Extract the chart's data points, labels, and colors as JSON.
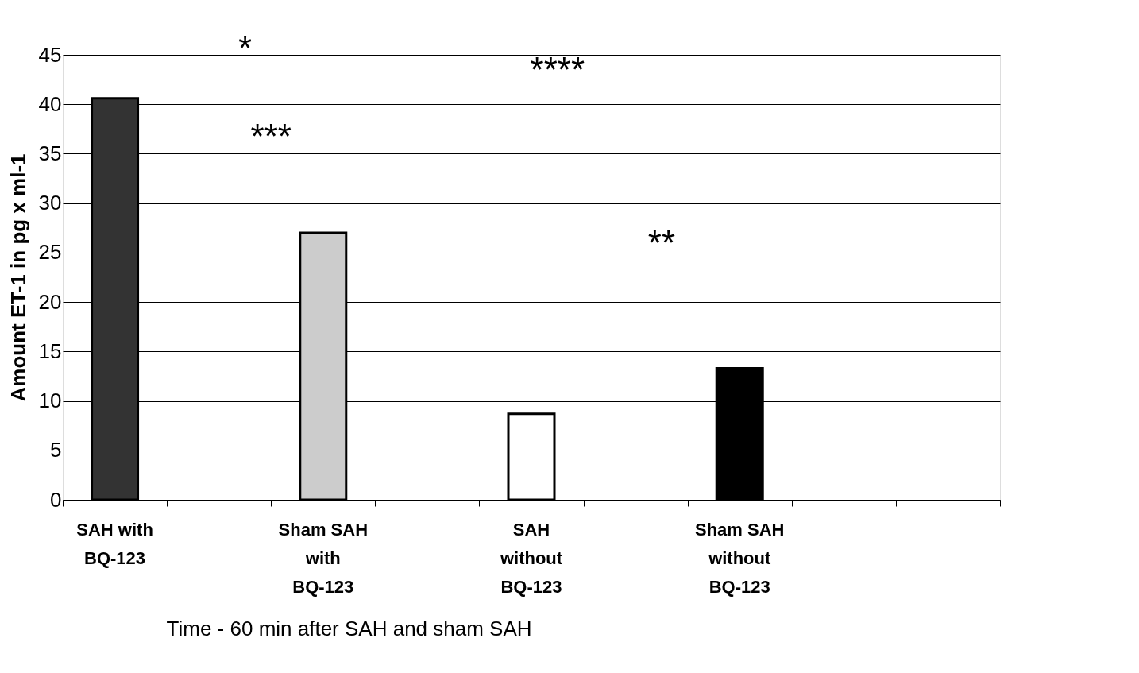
{
  "chart_data": {
    "type": "bar",
    "xlabel": "Time - 60 min after SAH and sham SAH",
    "ylabel": "Amount ET-1 in pg x ml-1",
    "categories": [
      "SAH with BQ-123",
      null,
      "Sham SAH with BQ-123",
      null,
      "SAH without BQ-123",
      null,
      "Sham SAH without BQ-123",
      null,
      null
    ],
    "values": [
      40.6,
      null,
      27,
      null,
      8.7,
      null,
      13.3,
      null,
      null
    ],
    "colors": [
      "#333333",
      "#ffffff",
      "#cccccc",
      "#ffffff",
      "#ffffff",
      "#ffffff",
      "#000000",
      "#ffffff",
      "#ffffff"
    ],
    "ylim": [
      0,
      45
    ],
    "yticks": [
      0,
      5,
      10,
      15,
      20,
      25,
      30,
      35,
      40,
      45
    ],
    "grid": "y",
    "annotations": [
      "*",
      "****",
      "***",
      "**"
    ]
  }
}
